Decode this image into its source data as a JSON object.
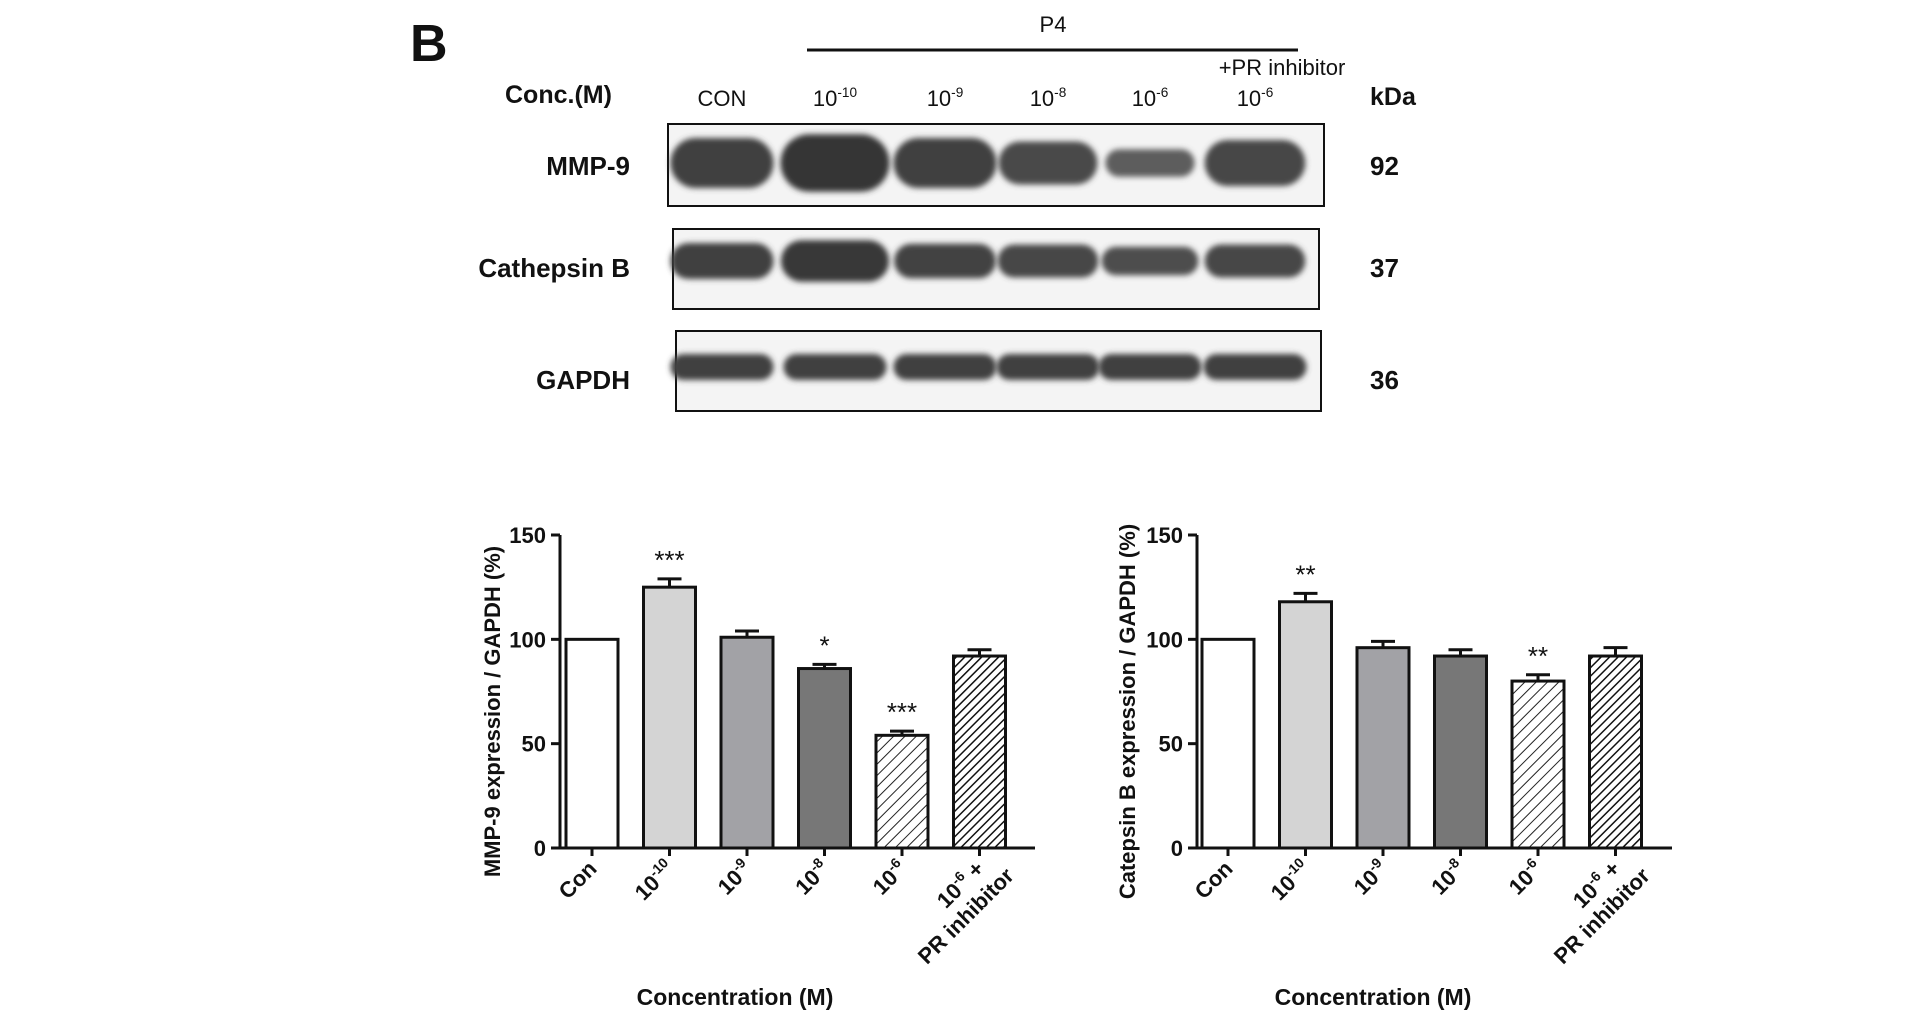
{
  "panel_label": "B",
  "blot": {
    "treatment_label": "P4",
    "inhibitor_label": "+PR inhibitor",
    "conc_label": "Conc.(M)",
    "kda_label": "kDa",
    "lanes": [
      {
        "base": "CON",
        "exp": ""
      },
      {
        "base": "10",
        "exp": "-10"
      },
      {
        "base": "10",
        "exp": "-9"
      },
      {
        "base": "10",
        "exp": "-8"
      },
      {
        "base": "10",
        "exp": "-6"
      },
      {
        "base": "10",
        "exp": "-6"
      }
    ],
    "rows": [
      {
        "name": "MMP-9",
        "kda": "92",
        "band_intensity": [
          1.0,
          1.2,
          1.0,
          0.86,
          0.54,
          0.92
        ]
      },
      {
        "name": "Cathepsin B",
        "kda": "37",
        "band_intensity": [
          1.0,
          1.17,
          0.96,
          0.92,
          0.79,
          0.92
        ]
      },
      {
        "name": "GAPDH",
        "kda": "36",
        "band_intensity": [
          1.0,
          1.0,
          1.0,
          1.0,
          1.0,
          1.0
        ]
      }
    ]
  },
  "chart_data": [
    {
      "type": "bar",
      "title": "",
      "ylabel": "MMP-9 expression / GAPDH (%)",
      "xlabel": "Concentration (M)",
      "ylim": [
        0,
        150
      ],
      "yticks": [
        "0",
        "50",
        "100",
        "150"
      ],
      "categories": [
        {
          "line1": "Con",
          "exp": "",
          "line2": ""
        },
        {
          "line1": "10",
          "exp": "-10",
          "line2": ""
        },
        {
          "line1": "10",
          "exp": "-9",
          "line2": ""
        },
        {
          "line1": "10",
          "exp": "-8",
          "line2": ""
        },
        {
          "line1": "10",
          "exp": "-6",
          "line2": ""
        },
        {
          "line1": "10",
          "exp": "-6",
          "suffix": " +",
          "line2": "PR inhibitor"
        }
      ],
      "values": [
        100,
        125,
        101,
        86,
        54,
        92
      ],
      "errors": [
        0,
        4,
        3,
        2,
        2,
        3
      ],
      "significance": [
        "",
        "***",
        "",
        "*",
        "***",
        ""
      ],
      "fills": [
        "white",
        "#d4d4d4",
        "#a2a2a6",
        "#777777",
        "hatch-light",
        "hatch-dark"
      ]
    },
    {
      "type": "bar",
      "title": "",
      "ylabel": "Catepsin B expression / GAPDH (%)",
      "xlabel": "Concentration (M)",
      "ylim": [
        0,
        150
      ],
      "yticks": [
        "0",
        "50",
        "100",
        "150"
      ],
      "categories": [
        {
          "line1": "Con",
          "exp": "",
          "line2": ""
        },
        {
          "line1": "10",
          "exp": "-10",
          "line2": ""
        },
        {
          "line1": "10",
          "exp": "-9",
          "line2": ""
        },
        {
          "line1": "10",
          "exp": "-8",
          "line2": ""
        },
        {
          "line1": "10",
          "exp": "-6",
          "line2": ""
        },
        {
          "line1": "10",
          "exp": "-6",
          "suffix": " +",
          "line2": "PR inhibitor"
        }
      ],
      "values": [
        100,
        118,
        96,
        92,
        80,
        92
      ],
      "errors": [
        0,
        4,
        3,
        3,
        3,
        4
      ],
      "significance": [
        "",
        "**",
        "",
        "",
        "**",
        ""
      ],
      "fills": [
        "white",
        "#d4d4d4",
        "#a2a2a6",
        "#777777",
        "hatch-light",
        "hatch-dark"
      ]
    }
  ]
}
